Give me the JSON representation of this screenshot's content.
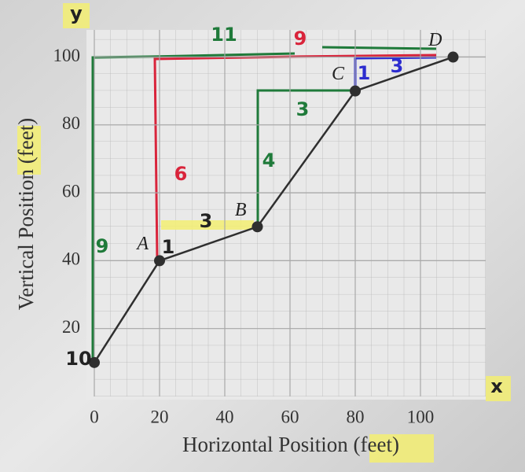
{
  "chart_data": {
    "type": "line",
    "x_label": "Horizontal Position (feet)",
    "y_label": "Vertical Position (feet)",
    "x": [
      0,
      20,
      50,
      80,
      110
    ],
    "series": [
      {
        "color": "#2f2f2f",
        "values": [
          10,
          40,
          50,
          90,
          100
        ]
      }
    ],
    "point_labels": [
      null,
      "A",
      "B",
      "C",
      "D"
    ],
    "xlim": [
      0,
      120
    ],
    "ylim": [
      0,
      108
    ],
    "xticks": [
      0,
      20,
      40,
      60,
      80,
      100
    ],
    "yticks": [
      20,
      40,
      60,
      80,
      100
    ],
    "grid": true,
    "annotations": [
      "y",
      "x",
      "10",
      "11",
      "9",
      "3",
      "1",
      "6",
      "3",
      "4",
      "3",
      "9",
      "1"
    ]
  }
}
